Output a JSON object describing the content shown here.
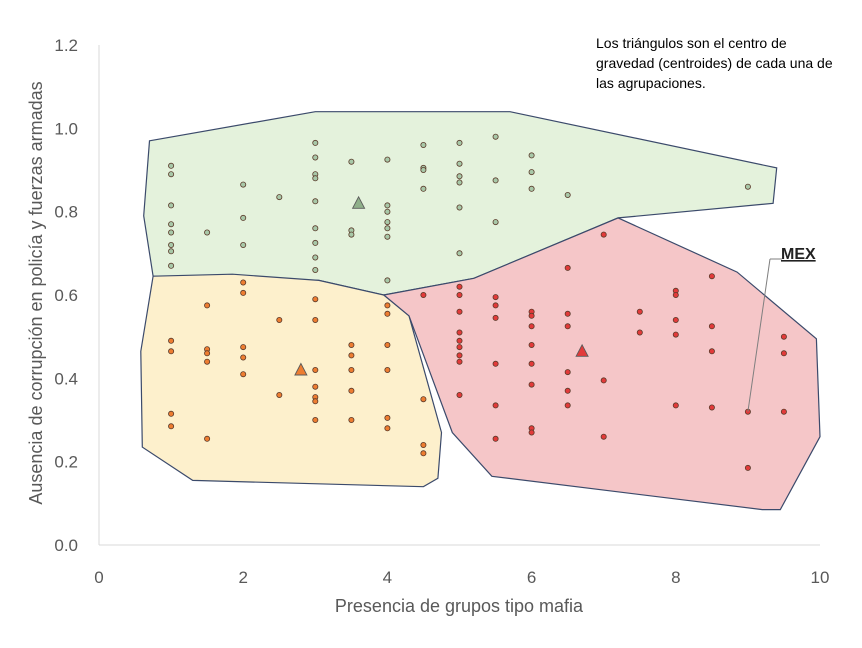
{
  "chart_data": {
    "type": "scatter",
    "xlabel": "Presencia de grupos tipo mafia",
    "ylabel": "Ausencia de corrupción en policía y fuerzas armadas",
    "xlim": [
      0,
      10
    ],
    "ylim": [
      0,
      1.2
    ],
    "x_ticks": [
      "0",
      "2",
      "4",
      "6",
      "8",
      "10"
    ],
    "y_ticks": [
      "0.0",
      "0.2",
      "0.4",
      "0.6",
      "0.8",
      "1.0",
      "1.2"
    ],
    "annotation": "Los triángulos son el centro de gravedad (centroides) de cada una de las  agrupaciones.",
    "grid": false,
    "legend": "none",
    "series": [
      {
        "color": "#a8c8a8",
        "hull_fill": "#e4f2dc",
        "centroid": [
          3.6,
          0.82
        ],
        "hull": [
          [
            0.7,
            0.97
          ],
          [
            3.0,
            1.04
          ],
          [
            5.7,
            1.04
          ],
          [
            9.4,
            0.905
          ],
          [
            9.35,
            0.82
          ],
          [
            7.2,
            0.785
          ],
          [
            5.2,
            0.64
          ],
          [
            3.95,
            0.6
          ],
          [
            3.05,
            0.635
          ],
          [
            0.75,
            0.645
          ],
          [
            0.62,
            0.79
          ]
        ],
        "points": [
          [
            1,
            0.91
          ],
          [
            1,
            0.89
          ],
          [
            1,
            0.815
          ],
          [
            1,
            0.77
          ],
          [
            1,
            0.75
          ],
          [
            1,
            0.72
          ],
          [
            1,
            0.705
          ],
          [
            1,
            0.67
          ],
          [
            1.5,
            0.75
          ],
          [
            2,
            0.865
          ],
          [
            2,
            0.785
          ],
          [
            2,
            0.72
          ],
          [
            2.5,
            0.835
          ],
          [
            3,
            0.965
          ],
          [
            3,
            0.93
          ],
          [
            3,
            0.89
          ],
          [
            3,
            0.88
          ],
          [
            3,
            0.825
          ],
          [
            3,
            0.76
          ],
          [
            3,
            0.725
          ],
          [
            3,
            0.69
          ],
          [
            3,
            0.66
          ],
          [
            3.5,
            0.92
          ],
          [
            3.5,
            0.755
          ],
          [
            3.5,
            0.745
          ],
          [
            4,
            0.925
          ],
          [
            4,
            0.815
          ],
          [
            4,
            0.8
          ],
          [
            4,
            0.775
          ],
          [
            4,
            0.76
          ],
          [
            4,
            0.74
          ],
          [
            4,
            0.635
          ],
          [
            4.5,
            0.96
          ],
          [
            4.5,
            0.905
          ],
          [
            4.5,
            0.9
          ],
          [
            4.5,
            0.855
          ],
          [
            5,
            0.965
          ],
          [
            5,
            0.915
          ],
          [
            5,
            0.885
          ],
          [
            5,
            0.87
          ],
          [
            5,
            0.81
          ],
          [
            5,
            0.7
          ],
          [
            5.5,
            0.98
          ],
          [
            5.5,
            0.875
          ],
          [
            5.5,
            0.775
          ],
          [
            6,
            0.935
          ],
          [
            6,
            0.895
          ],
          [
            6,
            0.855
          ],
          [
            6.5,
            0.84
          ],
          [
            9,
            0.86
          ]
        ]
      },
      {
        "color": "#ed7d31",
        "hull_fill": "#fdf0cc",
        "centroid": [
          2.8,
          0.42
        ],
        "hull": [
          [
            0.75,
            0.645
          ],
          [
            1.85,
            0.65
          ],
          [
            3.05,
            0.635
          ],
          [
            3.95,
            0.6
          ],
          [
            4.3,
            0.55
          ],
          [
            4.75,
            0.27
          ],
          [
            4.7,
            0.16
          ],
          [
            4.5,
            0.14
          ],
          [
            1.3,
            0.155
          ],
          [
            0.6,
            0.235
          ],
          [
            0.58,
            0.465
          ]
        ],
        "points": [
          [
            1,
            0.49
          ],
          [
            1,
            0.465
          ],
          [
            1,
            0.315
          ],
          [
            1,
            0.285
          ],
          [
            1.5,
            0.575
          ],
          [
            1.5,
            0.47
          ],
          [
            1.5,
            0.46
          ],
          [
            1.5,
            0.44
          ],
          [
            1.5,
            0.255
          ],
          [
            2,
            0.63
          ],
          [
            2,
            0.605
          ],
          [
            2,
            0.475
          ],
          [
            2,
            0.45
          ],
          [
            2,
            0.41
          ],
          [
            2.5,
            0.54
          ],
          [
            2.5,
            0.36
          ],
          [
            3,
            0.59
          ],
          [
            3,
            0.54
          ],
          [
            3,
            0.42
          ],
          [
            3,
            0.38
          ],
          [
            3,
            0.355
          ],
          [
            3,
            0.345
          ],
          [
            3,
            0.3
          ],
          [
            3.5,
            0.48
          ],
          [
            3.5,
            0.455
          ],
          [
            3.5,
            0.42
          ],
          [
            3.5,
            0.37
          ],
          [
            3.5,
            0.3
          ],
          [
            4,
            0.575
          ],
          [
            4,
            0.555
          ],
          [
            4,
            0.48
          ],
          [
            4,
            0.42
          ],
          [
            4,
            0.305
          ],
          [
            4,
            0.28
          ],
          [
            4.5,
            0.35
          ],
          [
            4.5,
            0.24
          ],
          [
            4.5,
            0.22
          ]
        ]
      },
      {
        "color": "#e23a3a",
        "hull_fill": "#f5c6c8",
        "centroid": [
          6.7,
          0.465
        ],
        "hull": [
          [
            3.95,
            0.6
          ],
          [
            5.2,
            0.64
          ],
          [
            7.2,
            0.785
          ],
          [
            8.85,
            0.655
          ],
          [
            9.95,
            0.495
          ],
          [
            10.0,
            0.26
          ],
          [
            9.45,
            0.085
          ],
          [
            9.2,
            0.085
          ],
          [
            5.45,
            0.165
          ],
          [
            4.9,
            0.27
          ],
          [
            4.3,
            0.55
          ]
        ],
        "points": [
          [
            4.5,
            0.6
          ],
          [
            5,
            0.62
          ],
          [
            5,
            0.6
          ],
          [
            5,
            0.56
          ],
          [
            5,
            0.51
          ],
          [
            5,
            0.49
          ],
          [
            5,
            0.475
          ],
          [
            5,
            0.455
          ],
          [
            5,
            0.44
          ],
          [
            5,
            0.36
          ],
          [
            5.5,
            0.595
          ],
          [
            5.5,
            0.575
          ],
          [
            5.5,
            0.545
          ],
          [
            5.5,
            0.435
          ],
          [
            5.5,
            0.335
          ],
          [
            5.5,
            0.255
          ],
          [
            6,
            0.56
          ],
          [
            6,
            0.55
          ],
          [
            6,
            0.525
          ],
          [
            6,
            0.48
          ],
          [
            6,
            0.435
          ],
          [
            6,
            0.385
          ],
          [
            6,
            0.28
          ],
          [
            6,
            0.27
          ],
          [
            6.5,
            0.665
          ],
          [
            6.5,
            0.555
          ],
          [
            6.5,
            0.525
          ],
          [
            6.5,
            0.415
          ],
          [
            6.5,
            0.37
          ],
          [
            6.5,
            0.335
          ],
          [
            7,
            0.745
          ],
          [
            7,
            0.395
          ],
          [
            7,
            0.26
          ],
          [
            7.5,
            0.56
          ],
          [
            7.5,
            0.51
          ],
          [
            8,
            0.61
          ],
          [
            8,
            0.6
          ],
          [
            8,
            0.54
          ],
          [
            8,
            0.505
          ],
          [
            8,
            0.335
          ],
          [
            8.5,
            0.645
          ],
          [
            8.5,
            0.525
          ],
          [
            8.5,
            0.465
          ],
          [
            8.5,
            0.33
          ],
          [
            9,
            0.32
          ],
          [
            9,
            0.185
          ],
          [
            9.5,
            0.5
          ],
          [
            9.5,
            0.46
          ],
          [
            9.5,
            0.32
          ]
        ]
      }
    ],
    "highlight": {
      "label": "MEX",
      "point": [
        9,
        0.32
      ]
    }
  }
}
